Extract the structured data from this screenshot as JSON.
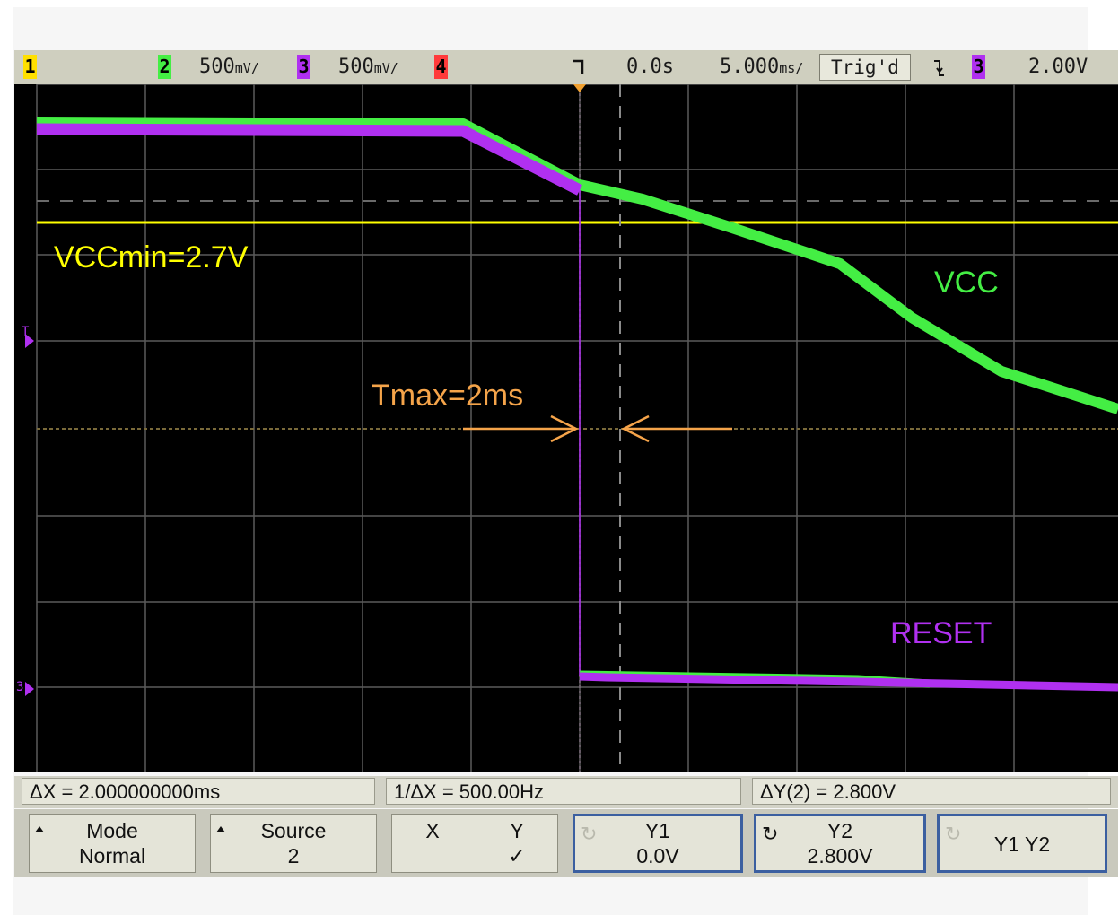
{
  "status_bar": {
    "ch1_label": "1",
    "ch2_label": "2",
    "ch2_scale": "500",
    "ch2_scale_unit": "mV/",
    "ch3_label": "3",
    "ch3_scale": "500",
    "ch3_scale_unit": "mV/",
    "ch4_label": "4",
    "trigger_edge_icon": "falling-edge-icon",
    "time_delay": "0.0s",
    "time_scale": "5.000",
    "time_scale_unit": "ms/",
    "trig_status": "Trig'd",
    "trig_slope_icon": "falling-slope-icon",
    "trig_source": "3",
    "trig_level": "2.00V"
  },
  "annotations": {
    "vccmin": "VCCmin=2.7V",
    "vcc": "VCC",
    "tmax": "Tmax=2ms",
    "reset": "RESET"
  },
  "markers": {
    "trigger_level_marker": "T",
    "reset_ground_marker": "3"
  },
  "measurements": {
    "delta_x": "ΔX = 2.000000000ms",
    "inv_delta_x": "1/ΔX = 500.00Hz",
    "delta_y": "ΔY(2) = 2.800V"
  },
  "softkeys": {
    "mode": {
      "line1": "Mode",
      "line2": "Normal"
    },
    "source": {
      "line1": "Source",
      "line2": "2"
    },
    "xy": {
      "x": "X",
      "y": "Y",
      "check": "✓"
    },
    "y1": {
      "line1": "Y1",
      "line2": "0.0V"
    },
    "y2": {
      "line1": "Y2",
      "line2": "2.800V"
    },
    "y1y2": {
      "line1": "Y1 Y2"
    }
  },
  "colors": {
    "ch2": "#44ee44",
    "ch3": "#b030f0",
    "ch1": "#ffe000",
    "ch4": "#ff3b3b",
    "trigger_line": "#ffff00",
    "cursor": "#f5a44a",
    "grid": "#5a5a5a"
  }
}
